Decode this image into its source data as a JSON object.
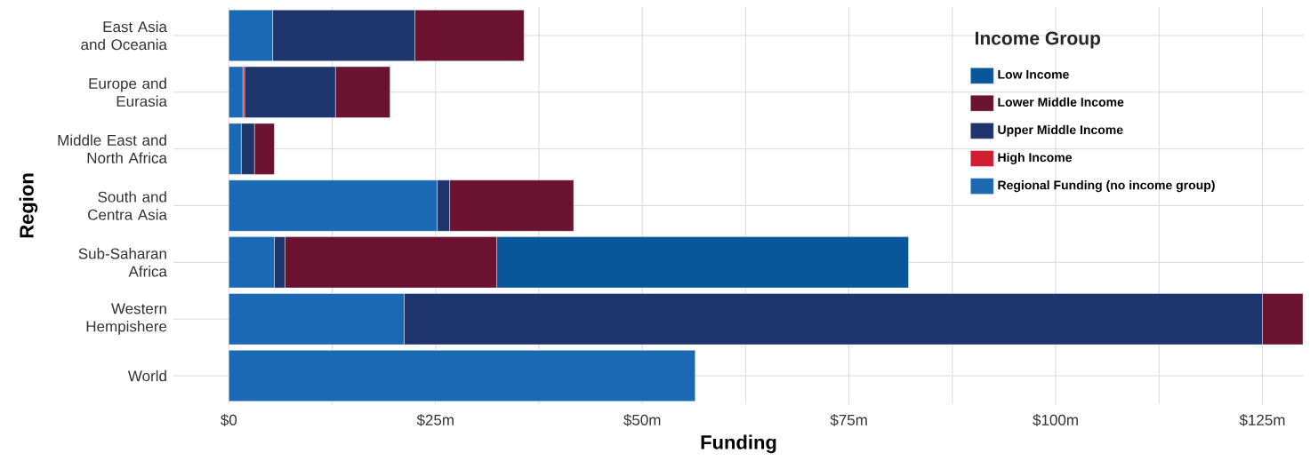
{
  "chart_data": {
    "type": "bar",
    "orientation": "horizontal",
    "stacked": true,
    "xlabel": "Funding",
    "ylabel": "Region",
    "legend_title": "Income Group",
    "legend": "top right",
    "grid": true,
    "categories": [
      "East Asia and Oceania",
      "Europe and Eurasia",
      "Middle East and North Africa",
      "South and Centra Asia",
      "Sub-Saharan Africa",
      "Western Hempishere",
      "World"
    ],
    "series": [
      {
        "name": "Regional Funding (no income group)",
        "color": "#1c69b3",
        "values": [
          5.3,
          1.7,
          1.5,
          25.2,
          5.5,
          21.2,
          56.4
        ]
      },
      {
        "name": "High Income",
        "color": "#d01f2e",
        "values": [
          null,
          0.2,
          null,
          null,
          null,
          null,
          null
        ]
      },
      {
        "name": "Upper Middle Income",
        "color": "#1d356a",
        "values": [
          17.2,
          11.0,
          1.6,
          1.5,
          1.3,
          103.8,
          null
        ]
      },
      {
        "name": "Lower Middle Income",
        "color": "#6b1230",
        "values": [
          13.2,
          6.6,
          2.4,
          15.0,
          25.6,
          4.9,
          null
        ]
      },
      {
        "name": "Low Income",
        "color": "#08579a",
        "values": [
          null,
          null,
          null,
          null,
          49.8,
          null,
          null
        ]
      }
    ],
    "xlim": [
      -6.7,
      130
    ],
    "xticks": [
      {
        "value": 0,
        "label": "$0"
      },
      {
        "value": 12.5,
        "label": null
      },
      {
        "value": 25,
        "label": "$25m"
      },
      {
        "value": 37.5,
        "label": null
      },
      {
        "value": 50,
        "label": "$50m"
      },
      {
        "value": 62.5,
        "label": null
      },
      {
        "value": 75,
        "label": "$75m"
      },
      {
        "value": 87.5,
        "label": null
      },
      {
        "value": 100,
        "label": "$100m"
      },
      {
        "value": 112.5,
        "label": null
      },
      {
        "value": 125,
        "label": "$125m"
      }
    ]
  }
}
